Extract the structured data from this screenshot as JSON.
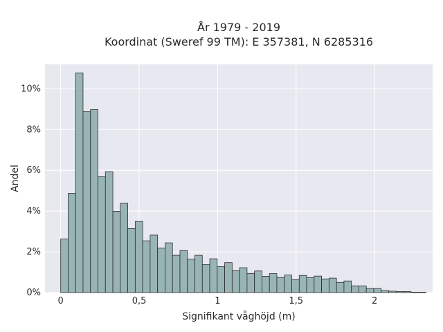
{
  "chart_data": {
    "type": "bar",
    "title": "År 1979 - 2019",
    "subtitle": "Koordinat (Sweref 99 TM): E 357381, N 6285316",
    "xlabel": "Signifikant våghöjd (m)",
    "ylabel": "Andel",
    "xlim": [
      -0.1,
      2.37
    ],
    "ylim": [
      0,
      11.2
    ],
    "x_ticks": [
      0,
      0.5,
      1,
      1.5,
      2
    ],
    "x_tick_labels": [
      "0",
      "0,5",
      "1",
      "1,5",
      "2"
    ],
    "y_ticks": [
      0,
      2,
      4,
      6,
      8,
      10
    ],
    "y_tick_labels": [
      "0%",
      "2%",
      "4%",
      "6%",
      "8%",
      "10%"
    ],
    "bin_width": 0.0475,
    "bin_start": 0.0,
    "values": [
      2.63,
      4.87,
      10.78,
      8.88,
      8.98,
      5.68,
      5.93,
      3.99,
      4.38,
      3.14,
      3.49,
      2.54,
      2.82,
      2.18,
      2.44,
      1.83,
      2.06,
      1.64,
      1.83,
      1.37,
      1.66,
      1.27,
      1.47,
      1.07,
      1.22,
      0.94,
      1.06,
      0.8,
      0.93,
      0.74,
      0.86,
      0.64,
      0.84,
      0.73,
      0.81,
      0.67,
      0.71,
      0.5,
      0.57,
      0.33,
      0.33,
      0.2,
      0.2,
      0.1,
      0.07,
      0.05,
      0.05,
      0.02,
      0.02
    ],
    "bar_color": "#99b4b4",
    "edge_color": "#2b2b2b",
    "background_color": "#e8e8f0",
    "grid": true,
    "legend": false
  }
}
